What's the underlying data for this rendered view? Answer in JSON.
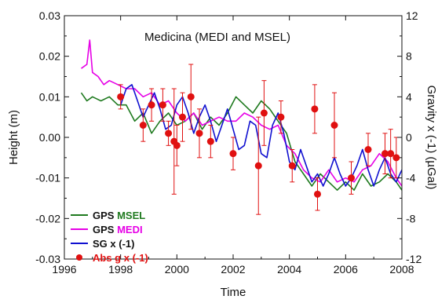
{
  "chart_data": {
    "type": "line",
    "title": "Medicina (MEDI and MSEL)",
    "xlabel": "Time",
    "ylabel": "Height (m)",
    "y2label": "Gravity x (-1) (µGal)",
    "xlim": [
      1996,
      2008
    ],
    "ylim": [
      -0.03,
      0.03
    ],
    "y2lim": [
      -12,
      12
    ],
    "x_ticks": [
      1996,
      1998,
      2000,
      2002,
      2004,
      2006,
      2008
    ],
    "x_tick_labels": [
      "1996",
      "1998",
      "2000",
      "2002",
      "2004",
      "2006",
      "2008"
    ],
    "y_ticks": [
      -0.03,
      -0.02,
      -0.01,
      0.0,
      0.01,
      0.02,
      0.03
    ],
    "y_tick_labels": [
      "-0.03",
      "-0.02",
      "-0.01",
      "0.00",
      "0.01",
      "0.02",
      "0.03"
    ],
    "y2_ticks": [
      -12,
      -8,
      -4,
      0,
      4,
      8,
      12
    ],
    "y2_tick_labels": [
      "-12",
      "-8",
      "-4",
      "0",
      "4",
      "8",
      "12"
    ],
    "grid": false,
    "legend_position": "bottom-left",
    "legend": [
      {
        "prefix": "GPS ",
        "highlight": "MSEL",
        "color": "#1f7a1f",
        "marker": "line"
      },
      {
        "prefix": "GPS ",
        "highlight": "MEDI",
        "color": "#e600e6",
        "marker": "line"
      },
      {
        "prefix": "SG x (-1)",
        "highlight": "",
        "color": "#1010d0",
        "marker": "line"
      },
      {
        "prefix": "Abs g x (-1)",
        "highlight": "",
        "color": "#e01010",
        "marker": "dot"
      }
    ],
    "series": [
      {
        "name": "GPS MSEL",
        "color": "#1f7a1f",
        "x": [
          1996.6,
          1996.8,
          1997.0,
          1997.3,
          1997.6,
          1997.9,
          1998.2,
          1998.5,
          1998.8,
          1999.1,
          1999.4,
          1999.7,
          2000.0,
          2000.3,
          2000.6,
          2000.9,
          2001.2,
          2001.5,
          2001.8,
          2002.1,
          2002.4,
          2002.7,
          2003.0,
          2003.3,
          2003.6,
          2003.9,
          2004.2,
          2004.5,
          2004.8,
          2005.1,
          2005.4,
          2005.7,
          2006.0,
          2006.3,
          2006.6,
          2006.9,
          2007.2,
          2007.5,
          2007.8,
          2008.0
        ],
        "y": [
          0.011,
          0.009,
          0.01,
          0.009,
          0.01,
          0.008,
          0.008,
          0.004,
          0.006,
          0.001,
          0.004,
          0.006,
          0.003,
          0.004,
          0.006,
          0.002,
          0.005,
          0.003,
          0.006,
          0.01,
          0.008,
          0.006,
          0.009,
          0.007,
          0.004,
          0.001,
          -0.006,
          -0.009,
          -0.012,
          -0.009,
          -0.011,
          -0.013,
          -0.011,
          -0.013,
          -0.009,
          -0.012,
          -0.011,
          -0.009,
          -0.011,
          -0.013
        ]
      },
      {
        "name": "GPS MEDI",
        "color": "#e600e6",
        "x": [
          1996.6,
          1996.8,
          1996.9,
          1997.0,
          1997.2,
          1997.4,
          1997.6,
          1997.9,
          1998.2,
          1998.5,
          1998.8,
          1999.1,
          1999.4,
          1999.7,
          2000.0,
          2000.3,
          2000.6,
          2000.9,
          2001.2,
          2001.5,
          2001.8,
          2002.1,
          2002.4,
          2002.7,
          2003.0,
          2003.3,
          2003.6,
          2003.9,
          2004.2,
          2004.5,
          2004.8,
          2005.1,
          2005.4,
          2005.7,
          2006.0,
          2006.3,
          2006.6,
          2006.9,
          2007.2,
          2007.5,
          2007.8,
          2008.0
        ],
        "y": [
          0.017,
          0.018,
          0.024,
          0.016,
          0.015,
          0.013,
          0.014,
          0.013,
          0.012,
          0.012,
          0.01,
          0.011,
          0.008,
          0.009,
          0.006,
          0.004,
          0.006,
          0.003,
          0.004,
          0.005,
          0.004,
          0.004,
          0.006,
          0.005,
          0.003,
          0.002,
          0.003,
          -0.002,
          -0.004,
          -0.008,
          -0.01,
          -0.011,
          -0.008,
          -0.011,
          -0.01,
          -0.011,
          -0.008,
          -0.007,
          -0.004,
          -0.006,
          -0.01,
          -0.012
        ]
      },
      {
        "name": "SG x (-1)",
        "color": "#1010d0",
        "x": [
          1998.0,
          1998.2,
          1998.4,
          1998.6,
          1998.8,
          1999.0,
          1999.2,
          1999.4,
          1999.6,
          1999.8,
          2000.0,
          2000.2,
          2000.4,
          2000.6,
          2000.8,
          2001.0,
          2001.2,
          2001.4,
          2001.6,
          2001.8,
          2002.0,
          2002.2,
          2002.4,
          2002.6,
          2002.8,
          2003.0,
          2003.2,
          2003.4,
          2003.6,
          2003.8,
          2004.0,
          2004.2,
          2004.4,
          2004.6,
          2004.8,
          2005.0,
          2005.2,
          2005.4,
          2005.6,
          2005.8,
          2006.0,
          2006.2,
          2006.4,
          2006.6,
          2006.8,
          2007.0,
          2007.2,
          2007.4,
          2007.6,
          2007.8,
          2008.0
        ],
        "y": [
          0.008,
          0.012,
          0.013,
          0.009,
          0.005,
          0.008,
          0.011,
          0.007,
          0.002,
          0.003,
          0.008,
          0.01,
          0.006,
          0.001,
          0.005,
          0.008,
          0.004,
          -0.001,
          0.003,
          0.007,
          0.002,
          -0.003,
          -0.002,
          0.004,
          0.003,
          -0.004,
          -0.005,
          0.003,
          0.006,
          0.001,
          -0.006,
          -0.008,
          -0.003,
          -0.007,
          -0.011,
          -0.009,
          -0.012,
          -0.009,
          -0.005,
          -0.009,
          -0.012,
          -0.01,
          -0.007,
          -0.003,
          -0.008,
          -0.012,
          -0.008,
          -0.005,
          -0.009,
          -0.011,
          -0.008
        ]
      }
    ],
    "abs_g": {
      "name": "Abs g x (-1)",
      "color": "#e01010",
      "x": [
        1998.0,
        1998.8,
        1999.1,
        1999.5,
        1999.7,
        1999.9,
        2000.0,
        2000.2,
        2000.5,
        2000.8,
        2001.2,
        2002.0,
        2002.9,
        2003.1,
        2003.7,
        2004.1,
        2004.9,
        2005.0,
        2005.6,
        2006.2,
        2006.8,
        2007.4,
        2007.6,
        2007.8
      ],
      "y": [
        0.01,
        0.003,
        0.008,
        0.008,
        0.001,
        -0.001,
        -0.002,
        0.005,
        0.01,
        0.001,
        -0.001,
        -0.004,
        -0.007,
        0.006,
        0.005,
        -0.007,
        0.007,
        -0.014,
        0.003,
        -0.01,
        -0.003,
        -0.004,
        -0.004,
        -0.005
      ],
      "err": [
        0.003,
        0.004,
        0.004,
        0.004,
        0.003,
        0.013,
        0.005,
        0.006,
        0.008,
        0.006,
        0.004,
        0.004,
        0.012,
        0.008,
        0.004,
        0.004,
        0.006,
        0.004,
        0.008,
        0.004,
        0.004,
        0.005,
        0.006,
        0.005
      ]
    }
  }
}
